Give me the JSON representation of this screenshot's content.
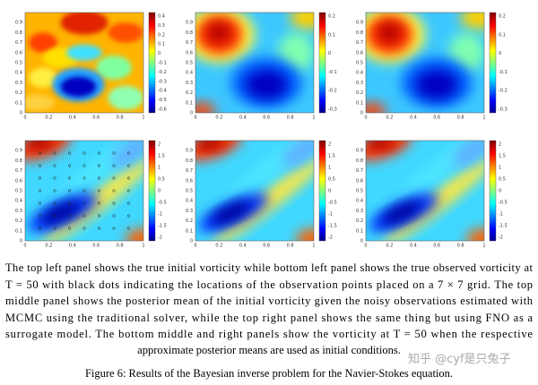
{
  "axes": {
    "xticks": [
      0,
      0.2,
      0.4,
      0.6,
      0.8,
      1
    ],
    "yticks": [
      0,
      0.1,
      0.2,
      0.3,
      0.4,
      0.5,
      0.6,
      0.7,
      0.8,
      0.9
    ]
  },
  "panels": [
    {
      "colorbar_ticks": [
        -0.6,
        -0.5,
        -0.4,
        -0.3,
        -0.2,
        -0.1,
        0,
        0.1,
        0.2,
        0.3,
        0.4
      ]
    },
    {
      "colorbar_ticks": [
        -0.3,
        -0.2,
        -0.1,
        0,
        0.1,
        0.2
      ]
    },
    {
      "colorbar_ticks": [
        -0.3,
        -0.2,
        -0.1,
        0,
        0.1,
        0.2
      ]
    },
    {
      "colorbar_ticks": [
        -2,
        -1.5,
        -1,
        -0.5,
        0,
        0.5,
        1,
        1.5,
        2
      ]
    },
    {
      "colorbar_ticks": [
        -2,
        -1.5,
        -1,
        -0.5,
        0,
        0.5,
        1,
        1.5,
        2
      ]
    },
    {
      "colorbar_ticks": [
        -2,
        -1.5,
        -1,
        -0.5,
        0,
        0.5,
        1,
        1.5,
        2
      ]
    }
  ],
  "caption": {
    "paragraph": [
      "The top left panel shows the true initial vorticity while bottom left panel shows the true observed vorticity at",
      "T = 50 with black dots indicating the locations of the observation points placed on a 7 × 7 grid. The top",
      "middle panel shows the posterior mean of the initial vorticity given the noisy observations estimated with",
      "MCMC using the traditional solver, while the top right panel shows the same thing but using FNO as a",
      "surrogate model. The bottom middle and right panels show the vorticity at T = 50 when the respective",
      "approximate posterior means are used as initial conditions."
    ],
    "figure": "Figure 6: Results of the Bayesian inverse problem for the Navier-Stokes equation."
  },
  "watermark": "知乎 @cyf是只兔子"
}
